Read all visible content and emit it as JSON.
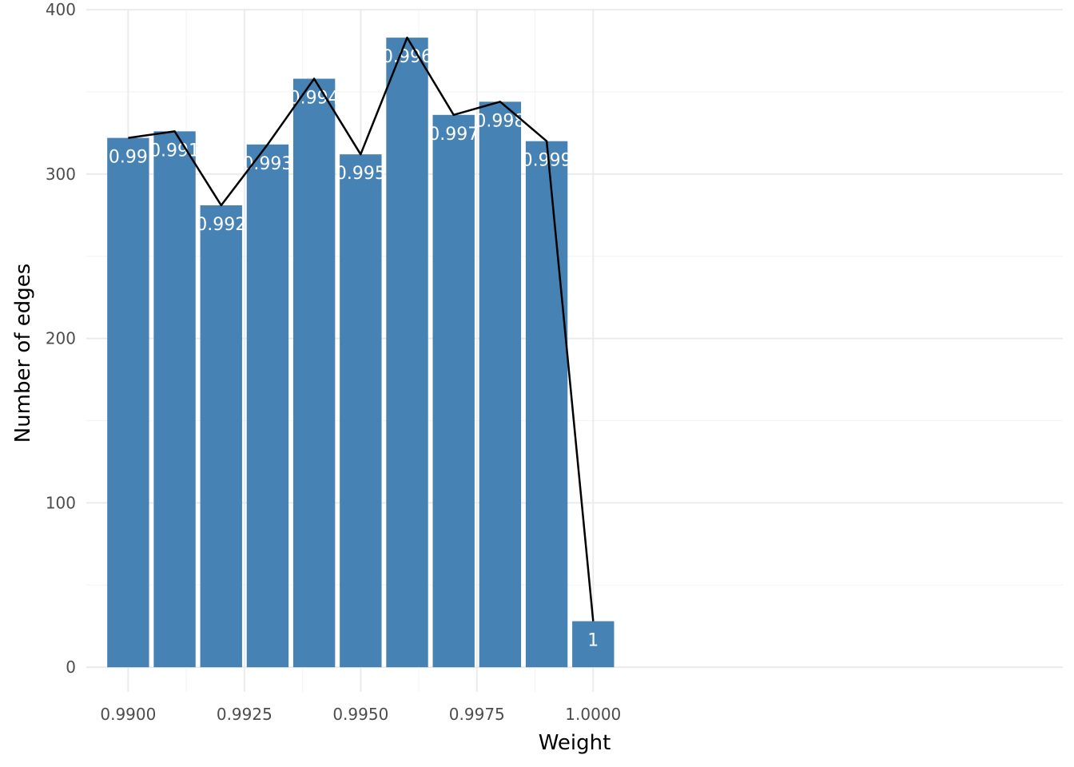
{
  "chart_data": {
    "type": "bar",
    "title": "",
    "xlabel": "Weight",
    "ylabel": "Number of edges",
    "x": [
      0.99,
      0.991,
      0.992,
      0.993,
      0.994,
      0.995,
      0.996,
      0.997,
      0.998,
      0.999,
      1.0
    ],
    "values": [
      322,
      326,
      281,
      318,
      358,
      312,
      383,
      336,
      344,
      320,
      28
    ],
    "bar_labels": [
      "0.99",
      "0.991",
      "0.992",
      "0.993",
      "0.994",
      "0.995",
      "0.996",
      "0.997",
      "0.998",
      "0.999",
      "1"
    ],
    "overlay_line": {
      "type": "line",
      "color": "#000000"
    },
    "xlim": [
      0.9891,
      1.0101
    ],
    "ylim": [
      -15,
      402
    ],
    "x_ticks": [
      0.99,
      0.9925,
      0.995,
      0.9975,
      1.0
    ],
    "x_tick_labels": [
      "0.9900",
      "0.9925",
      "0.9950",
      "0.9975",
      "1.0000"
    ],
    "y_ticks": [
      0,
      100,
      200,
      300,
      400
    ],
    "y_tick_labels": [
      "0",
      "100",
      "200",
      "300",
      "400"
    ],
    "bar_color": "#4682b4",
    "grid": true,
    "legend": "none"
  }
}
